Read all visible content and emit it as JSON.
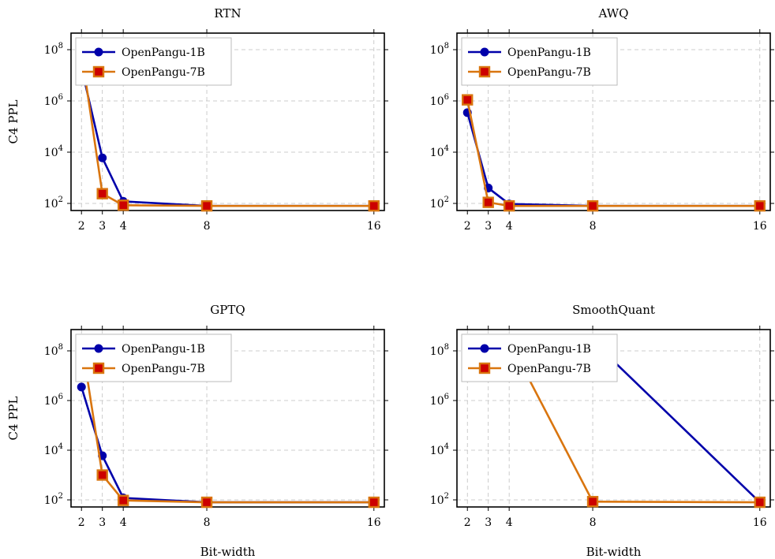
{
  "chart_data": [
    {
      "type": "line",
      "title": "RTN",
      "ylabel": "C4 PPL",
      "xlabel": "",
      "x": [
        2,
        3,
        4,
        8,
        16
      ],
      "xticks": [
        "2",
        "3",
        "4",
        "8",
        "16"
      ],
      "xlim": [
        1.5,
        16.5
      ],
      "yscale": "log",
      "ylim": [
        50,
        150000000
      ],
      "yticks": [
        {
          "base": "10",
          "exp": "2",
          "value": 100
        },
        {
          "base": "10",
          "exp": "4",
          "value": 10000
        },
        {
          "base": "10",
          "exp": "6",
          "value": 1000000
        },
        {
          "base": "10",
          "exp": "8",
          "value": 100000000
        }
      ],
      "grid": true,
      "legend": "top-left",
      "series": [
        {
          "name": "OpenPangu-1B",
          "values": [
            20000000,
            6000,
            120,
            80,
            80
          ]
        },
        {
          "name": "OpenPangu-7B",
          "values": [
            80000000,
            240,
            85,
            80,
            80
          ]
        }
      ]
    },
    {
      "type": "line",
      "title": "AWQ",
      "ylabel": "",
      "xlabel": "",
      "x": [
        2,
        3,
        4,
        8,
        16
      ],
      "xticks": [
        "2",
        "3",
        "4",
        "8",
        "16"
      ],
      "xlim": [
        1.5,
        16.5
      ],
      "yscale": "log",
      "ylim": [
        50,
        150000000
      ],
      "yticks": [
        {
          "base": "10",
          "exp": "2",
          "value": 100
        },
        {
          "base": "10",
          "exp": "4",
          "value": 10000
        },
        {
          "base": "10",
          "exp": "6",
          "value": 1000000
        },
        {
          "base": "10",
          "exp": "8",
          "value": 100000000
        }
      ],
      "grid": true,
      "legend": "top-left",
      "series": [
        {
          "name": "OpenPangu-1B",
          "values": [
            350000,
            400,
            95,
            80,
            80
          ]
        },
        {
          "name": "OpenPangu-7B",
          "values": [
            1100000,
            110,
            80,
            80,
            80
          ]
        }
      ]
    },
    {
      "type": "line",
      "title": "GPTQ",
      "ylabel": "C4 PPL",
      "xlabel": "Bit-width",
      "x": [
        2,
        3,
        4,
        8,
        16
      ],
      "xticks": [
        "2",
        "3",
        "4",
        "8",
        "16"
      ],
      "xlim": [
        1.5,
        16.5
      ],
      "yscale": "log",
      "ylim": [
        50,
        300000000
      ],
      "yticks": [
        {
          "base": "10",
          "exp": "2",
          "value": 100
        },
        {
          "base": "10",
          "exp": "4",
          "value": 10000
        },
        {
          "base": "10",
          "exp": "6",
          "value": 1000000
        },
        {
          "base": "10",
          "exp": "8",
          "value": 100000000
        }
      ],
      "grid": true,
      "legend": "top-left",
      "series": [
        {
          "name": "OpenPangu-1B",
          "values": [
            3500000,
            6000,
            120,
            80,
            80
          ]
        },
        {
          "name": "OpenPangu-7B",
          "values": [
            250000000,
            1000,
            95,
            80,
            80
          ]
        }
      ]
    },
    {
      "type": "line",
      "title": "SmoothQuant",
      "ylabel": "",
      "xlabel": "Bit-width",
      "x": [
        4,
        8,
        16
      ],
      "xticks": [
        "2",
        "3",
        "4",
        "8",
        "16"
      ],
      "xtick_values": [
        2,
        3,
        4,
        8,
        16
      ],
      "xlim": [
        1.5,
        16.5
      ],
      "yscale": "log",
      "ylim": [
        50,
        300000000
      ],
      "yticks": [
        {
          "base": "10",
          "exp": "2",
          "value": 100
        },
        {
          "base": "10",
          "exp": "4",
          "value": 10000
        },
        {
          "base": "10",
          "exp": "6",
          "value": 1000000
        },
        {
          "base": "10",
          "exp": "8",
          "value": 100000000
        }
      ],
      "grid": true,
      "legend": "top-left",
      "series": [
        {
          "name": "OpenPangu-1B",
          "values": [
            250000000,
            250000000,
            80
          ]
        },
        {
          "name": "OpenPangu-7B",
          "values": [
            250000000,
            85,
            80
          ]
        }
      ]
    }
  ],
  "styles": {
    "series_colors": [
      "#0000aa",
      "#d9750f"
    ],
    "marker_inner": "#cc0000",
    "grid_color": "#bfbfbf"
  }
}
